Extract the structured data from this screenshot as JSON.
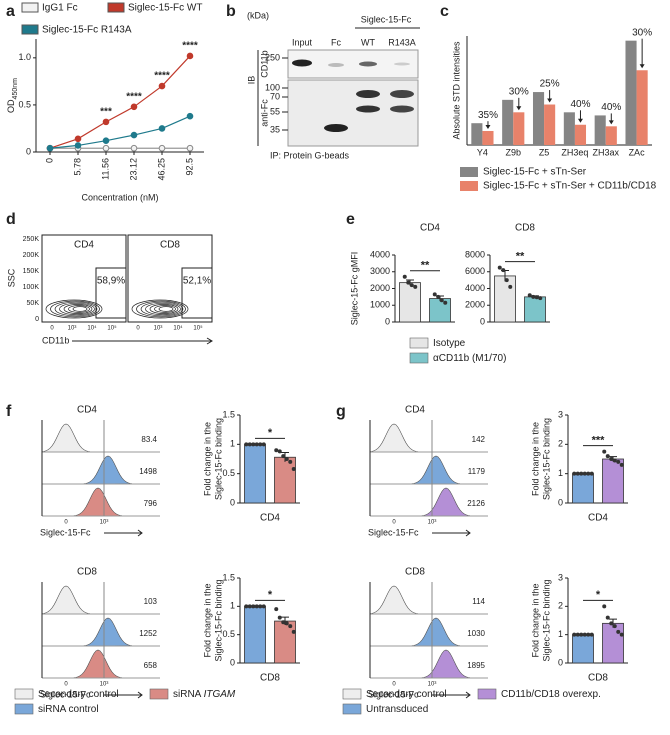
{
  "panel_labels": [
    "a",
    "b",
    "c",
    "d",
    "e",
    "f",
    "g"
  ],
  "chart_data": [
    {
      "type": "line",
      "categories": [
        "0",
        "5.78",
        "11.56",
        "23.12",
        "46.25",
        "92.5"
      ],
      "series": [
        {
          "name": "IgG1 Fc",
          "color": "#f2f2f2",
          "values": [
            0.04,
            0.04,
            0.04,
            0.04,
            0.04,
            0.04
          ]
        },
        {
          "name": "Siglec-15-Fc WT",
          "color": "#c0392b",
          "values": [
            0.04,
            0.14,
            0.32,
            0.48,
            0.7,
            1.02
          ]
        },
        {
          "name": "Siglec-15-Fc R143A",
          "color": "#1f7a8c",
          "values": [
            0.04,
            0.07,
            0.12,
            0.18,
            0.25,
            0.38
          ]
        }
      ],
      "ylabel": "OD",
      "ylabel_sub": "450nm",
      "xlabel": "Concentration (nM)",
      "ylim": [
        0,
        1.2
      ],
      "yticks": [
        0,
        0.5,
        {
          "value": 1,
          "label": "1.0"
        }
      ],
      "significance": [
        null,
        null,
        "***",
        "****",
        "****",
        "****"
      ]
    },
    {
      "type": "bar",
      "ylabel": "Absolute STD intensities",
      "categories": [
        "Y4",
        "Z9b",
        "Z5",
        "ZH3eq",
        "ZH3ax",
        "ZAc"
      ],
      "series": [
        {
          "name": "Siglec-15-Fc + sTn-Ser",
          "color": "#858585",
          "values": [
            1.4,
            2.9,
            3.4,
            2.1,
            1.9,
            6.7
          ]
        },
        {
          "name": "Siglec-15-Fc + sTn-Ser + CD11b/CD18",
          "color": "#e8826a",
          "values": [
            0.9,
            2.1,
            2.6,
            1.3,
            1.2,
            4.8
          ]
        }
      ],
      "annotations": [
        "35%",
        "30%",
        "25%",
        "40%",
        "40%",
        "30%"
      ],
      "ylim": [
        0,
        7
      ]
    },
    {
      "type": "bar",
      "title": "CD4",
      "ylabel": "Siglec-15-Fc gMFI",
      "colors": [
        "#e6e6e6",
        "#7cc4c9"
      ],
      "values": [
        2350,
        1400
      ],
      "errors": [
        160,
        150
      ],
      "points": [
        [
          2700,
          2350,
          2200,
          2100
        ],
        [
          1650,
          1500,
          1300,
          1150
        ]
      ],
      "ylim": [
        0,
        4000
      ],
      "yticks": [
        0,
        1000,
        2000,
        3000,
        4000
      ],
      "significance": "**"
    },
    {
      "type": "bar",
      "title": "CD8",
      "colors": [
        "#e6e6e6",
        "#7cc4c9"
      ],
      "values": [
        5500,
        3000
      ],
      "errors": [
        650,
        120
      ],
      "points": [
        [
          6500,
          6200,
          5000,
          4200
        ],
        [
          3200,
          3000,
          2950,
          2850
        ]
      ],
      "ylim": [
        0,
        8000
      ],
      "yticks": [
        0,
        2000,
        4000,
        6000,
        8000
      ],
      "significance": "**"
    },
    {
      "type": "bar",
      "xlabel": "CD4",
      "ylabel": [
        "Fold change in the",
        "Siglec-15-Fc binding"
      ],
      "colors": [
        "#7aa7d9",
        "#d98b85"
      ],
      "values": [
        1,
        0.78
      ],
      "errors": [
        0,
        0.08
      ],
      "points": [
        [
          1,
          1,
          1,
          1,
          1,
          1
        ],
        [
          0.9,
          0.88,
          0.8,
          0.75,
          0.7,
          0.58
        ]
      ],
      "ylim": [
        0,
        1.5
      ],
      "yticks": [
        0,
        0.5,
        1,
        1.5
      ],
      "significance": "*"
    },
    {
      "type": "bar",
      "xlabel": "CD8",
      "ylabel": [
        "Fold change in the",
        "Siglec-15-Fc binding"
      ],
      "colors": [
        "#7aa7d9",
        "#d98b85"
      ],
      "values": [
        1,
        0.74
      ],
      "errors": [
        0,
        0.07
      ],
      "points": [
        [
          1,
          1,
          1,
          1,
          1,
          1
        ],
        [
          0.95,
          0.8,
          0.72,
          0.7,
          0.65,
          0.55
        ]
      ],
      "ylim": [
        0,
        1.5
      ],
      "yticks": [
        0,
        0.5,
        1,
        1.5
      ],
      "significance": "*"
    },
    {
      "type": "bar",
      "xlabel": "CD4",
      "ylabel": [
        "Fold change in the",
        "Siglec-15-Fc binding"
      ],
      "colors": [
        "#7aa7d9",
        "#b48fd6"
      ],
      "values": [
        1,
        1.5
      ],
      "errors": [
        0,
        0.08
      ],
      "points": [
        [
          1,
          1,
          1,
          1,
          1,
          1
        ],
        [
          1.75,
          1.6,
          1.5,
          1.45,
          1.4,
          1.3
        ]
      ],
      "ylim": [
        0,
        3
      ],
      "yticks": [
        0,
        1,
        2,
        3
      ],
      "significance": "***"
    },
    {
      "type": "bar",
      "xlabel": "CD8",
      "ylabel": [
        "Fold change in the",
        "Siglec-15-Fc binding"
      ],
      "colors": [
        "#7aa7d9",
        "#b48fd6"
      ],
      "values": [
        1,
        1.4
      ],
      "errors": [
        0,
        0.15
      ],
      "points": [
        [
          1,
          1,
          1,
          1,
          1,
          1
        ],
        [
          2.0,
          1.6,
          1.4,
          1.3,
          1.1,
          1.0
        ]
      ],
      "ylim": [
        0,
        3
      ],
      "yticks": [
        0,
        1,
        2,
        3
      ],
      "significance": "*"
    }
  ],
  "blot": {
    "kda": "(kDa)",
    "lanes": [
      "Input",
      "Fc",
      "WT",
      "R143A"
    ],
    "group": "Siglec-15-Fc",
    "ib": "IB",
    "rows": [
      "CD11b",
      "anti-Fc"
    ],
    "markers": [
      250,
      100,
      70,
      55,
      35
    ],
    "ip": "IP: Protein G-beads"
  },
  "flow_d": {
    "plots": [
      "CD4",
      "CD8"
    ],
    "gates": [
      "58,9%",
      "52,1%"
    ],
    "ylabel": "SSC",
    "xlabel": "CD11b",
    "yticks": [
      "250K",
      "200K",
      "150K",
      "100K",
      "50K",
      "0"
    ],
    "xticks": [
      "0",
      "10³",
      "10⁴",
      "10⁵"
    ]
  },
  "histograms": {
    "xlabel": "Siglec-15-Fc",
    "xticks": [
      "0",
      "10³"
    ],
    "f": [
      {
        "title": "CD4",
        "values": [
          83.4,
          1498,
          796
        ]
      },
      {
        "title": "CD8",
        "values": [
          103,
          1252,
          658
        ]
      }
    ],
    "g": [
      {
        "title": "CD4",
        "values": [
          142,
          1179,
          2126
        ]
      },
      {
        "title": "CD8",
        "values": [
          114,
          1030,
          1895
        ]
      }
    ]
  },
  "legends": {
    "e": [
      {
        "label": "Isotype",
        "color": "#e6e6e6"
      },
      {
        "label": "αCD11b (M1/70)",
        "color": "#7cc4c9"
      }
    ],
    "f": [
      {
        "label": "Secondary control",
        "color": "#eeeeee"
      },
      {
        "label": "siRNA",
        "italic": "ITGAM",
        "color": "#d98b85"
      },
      {
        "label": "siRNA control",
        "color": "#7aa7d9"
      }
    ],
    "g": [
      {
        "label": "Secondary control",
        "color": "#eeeeee"
      },
      {
        "label": "CD11b/CD18 overexp.",
        "color": "#b48fd6"
      },
      {
        "label": "Untransduced",
        "color": "#7aa7d9"
      }
    ]
  }
}
